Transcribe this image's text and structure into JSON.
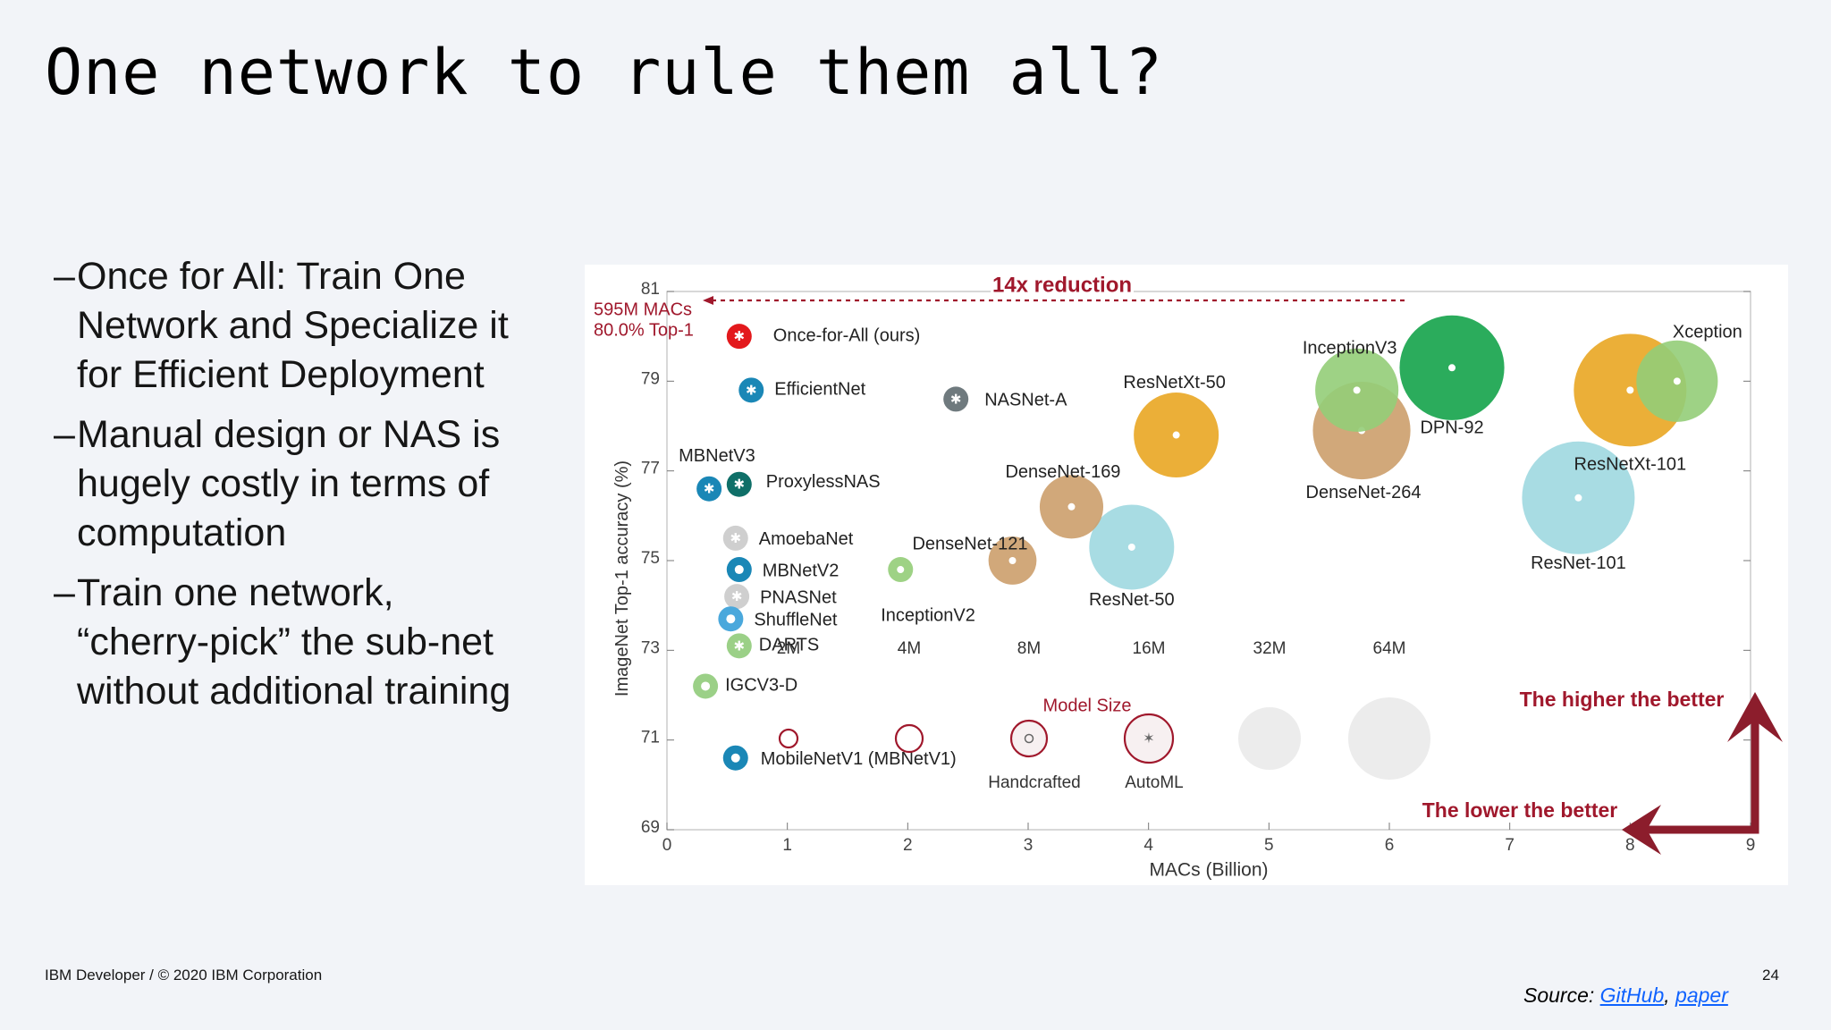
{
  "slide": {
    "title": "One network to rule them all?",
    "bullets": [
      "Once for All: Train One Network and Specialize it for Efficient Deployment",
      "Manual design or NAS is hugely costly in terms of computation",
      "Train one network, “cherry-pick” the sub-net without additional training"
    ],
    "bullet_marker": "–",
    "footer": "IBM Developer / © 2020 IBM Corporation",
    "page_number": "24",
    "source_label": "Source:",
    "source_links": [
      "GitHub",
      "paper"
    ],
    "source_sep": ","
  },
  "chart_data": {
    "type": "scatter",
    "xlabel": "MACs (Billion)",
    "ylabel": "ImageNet Top-1 accuracy (%)",
    "xlim": [
      0,
      9
    ],
    "ylim": [
      69,
      81
    ],
    "x_ticks": [
      0,
      1,
      2,
      3,
      4,
      5,
      6,
      7,
      8,
      9
    ],
    "y_ticks": [
      69,
      71,
      73,
      75,
      77,
      79,
      81
    ],
    "grid": false,
    "points": [
      {
        "name": "Once-for-All (ours)",
        "x": 0.6,
        "y": 80.0,
        "size": 0.3,
        "color": "#e3191c",
        "marker": "star"
      },
      {
        "name": "EfficientNet",
        "x": 0.7,
        "y": 78.8,
        "size": 0.3,
        "color": "#1a87b6",
        "marker": "star"
      },
      {
        "name": "NASNet-A",
        "x": 2.4,
        "y": 78.6,
        "size": 0.4,
        "color": "#6f7a7e",
        "marker": "star"
      },
      {
        "name": "MBNetV3",
        "x": 0.35,
        "y": 76.6,
        "size": 0.3,
        "color": "#1a87b6",
        "marker": "star"
      },
      {
        "name": "ProxylessNAS",
        "x": 0.6,
        "y": 76.7,
        "size": 0.3,
        "color": "#0f6f68",
        "marker": "star"
      },
      {
        "name": "AmoebaNet",
        "x": 0.57,
        "y": 75.5,
        "size": 0.3,
        "color": "#cfcfcf",
        "marker": "star"
      },
      {
        "name": "MBNetV2",
        "x": 0.6,
        "y": 74.8,
        "size": 0.3,
        "color": "#1a87b6",
        "marker": "dot"
      },
      {
        "name": "PNASNet",
        "x": 0.58,
        "y": 74.2,
        "size": 0.3,
        "color": "#cfcfcf",
        "marker": "star"
      },
      {
        "name": "ShuffleNet",
        "x": 0.53,
        "y": 73.7,
        "size": 0.3,
        "color": "#4aa8dc",
        "marker": "dot"
      },
      {
        "name": "DARTS",
        "x": 0.6,
        "y": 73.1,
        "size": 0.3,
        "color": "#9bd087",
        "marker": "star"
      },
      {
        "name": "IGCV3-D",
        "x": 0.32,
        "y": 72.2,
        "size": 0.3,
        "color": "#9bd087",
        "marker": "dot"
      },
      {
        "name": "MobileNetV1 (MBNetV1)",
        "x": 0.57,
        "y": 70.6,
        "size": 0.3,
        "color": "#1a87b6",
        "marker": "dot"
      },
      {
        "name": "InceptionV2",
        "x": 1.94,
        "y": 74.8,
        "size": 2,
        "color": "#93cd78",
        "marker": "dot"
      },
      {
        "name": "DenseNet-121",
        "x": 2.87,
        "y": 75.0,
        "size": 8,
        "color": "#cc9f6b",
        "marker": "dot"
      },
      {
        "name": "DenseNet-169",
        "x": 3.36,
        "y": 76.2,
        "size": 14,
        "color": "#cc9f6b",
        "marker": "dot"
      },
      {
        "name": "ResNet-50",
        "x": 3.86,
        "y": 75.3,
        "size": 25,
        "color": "#9fd8e0",
        "marker": "dot"
      },
      {
        "name": "ResNetXt-50",
        "x": 4.23,
        "y": 77.8,
        "size": 25,
        "color": "#e9a622",
        "marker": "dot"
      },
      {
        "name": "InceptionV3",
        "x": 5.73,
        "y": 78.8,
        "size": 24,
        "color": "#93cd78",
        "marker": "dot"
      },
      {
        "name": "DenseNet-264",
        "x": 5.77,
        "y": 77.9,
        "size": 33,
        "color": "#cc9f6b",
        "marker": "dot"
      },
      {
        "name": "DPN-92",
        "x": 6.52,
        "y": 79.3,
        "size": 38,
        "color": "#14a34a",
        "marker": "dot"
      },
      {
        "name": "ResNet-101",
        "x": 7.57,
        "y": 76.4,
        "size": 44,
        "color": "#9fd8e0",
        "marker": "dot"
      },
      {
        "name": "ResNetXt-101",
        "x": 8.0,
        "y": 78.8,
        "size": 44,
        "color": "#e9a622",
        "marker": "dot"
      },
      {
        "name": "Xception",
        "x": 8.39,
        "y": 79.0,
        "size": 23,
        "color": "#93cd78",
        "marker": "dot"
      }
    ],
    "annotations": {
      "ofa_note": [
        "595M MACs",
        "80.0% Top-1"
      ],
      "reduction": "14x reduction",
      "higher_better": "The higher the better",
      "lower_better": "The lower the better"
    },
    "size_legend": {
      "title": "Model Size",
      "labels": [
        "2M",
        "4M",
        "8M",
        "16M",
        "32M",
        "64M"
      ],
      "kind_labels": [
        "Handcrafted",
        "AutoML"
      ]
    },
    "colors": {
      "accent": "#a0182c",
      "ofa": "#e3191c",
      "axis": "#555555"
    }
  }
}
